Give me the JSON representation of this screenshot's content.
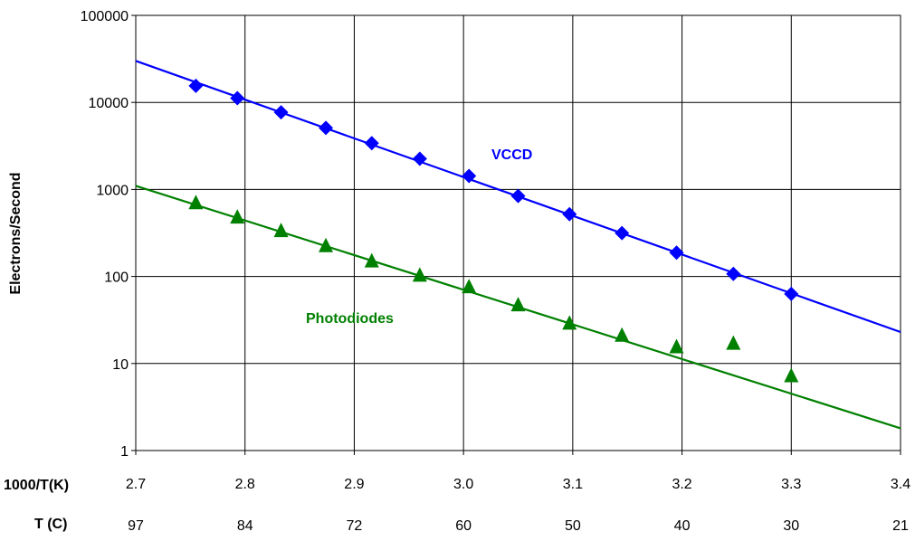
{
  "chart_data": {
    "type": "scatter",
    "xlabel": "1000/T(K)",
    "x2label": "T (C)",
    "ylabel": "Electrons/Second",
    "xlim": [
      2.7,
      3.4
    ],
    "ylim": [
      1,
      100000
    ],
    "y_scale": "log",
    "grid": true,
    "x_ticks": [
      "2.7",
      "2.8",
      "2.9",
      "3.0",
      "3.1",
      "3.2",
      "3.3",
      "3.4"
    ],
    "y_ticks": [
      "1",
      "10",
      "100",
      "1000",
      "10000",
      "100000"
    ],
    "t_ticks": [
      {
        "x": 2.7,
        "label": "97"
      },
      {
        "x": 2.8,
        "label": "84"
      },
      {
        "x": 2.9,
        "label": "72"
      },
      {
        "x": 3.0,
        "label": "60"
      },
      {
        "x": 3.1,
        "label": "50"
      },
      {
        "x": 3.2,
        "label": "40"
      },
      {
        "x": 3.3,
        "label": "30"
      },
      {
        "x": 3.4,
        "label": "21"
      }
    ],
    "series": [
      {
        "name": "VCCD",
        "color": "#0000ff",
        "marker": "diamond",
        "x": [
          2.755,
          2.793,
          2.833,
          2.874,
          2.916,
          2.96,
          3.005,
          3.05,
          3.097,
          3.145,
          3.195,
          3.247,
          3.3
        ],
        "y": [
          15500,
          11200,
          7700,
          5100,
          3400,
          2250,
          1430,
          840,
          520,
          315,
          188,
          107,
          63
        ],
        "fit": {
          "x": [
            2.7,
            3.4
          ],
          "y": [
            30000,
            23
          ]
        }
      },
      {
        "name": "Photodiodes",
        "color": "#008000",
        "marker": "triangle",
        "x": [
          2.755,
          2.793,
          2.833,
          2.874,
          2.916,
          2.96,
          3.005,
          3.05,
          3.097,
          3.145,
          3.195,
          3.247,
          3.3
        ],
        "y": [
          700,
          480,
          335,
          225,
          150,
          103,
          76,
          47,
          29,
          21,
          15.5,
          17,
          7.2
        ],
        "fit": {
          "x": [
            2.7,
            3.4
          ],
          "y": [
            1100,
            1.8
          ]
        }
      }
    ]
  }
}
